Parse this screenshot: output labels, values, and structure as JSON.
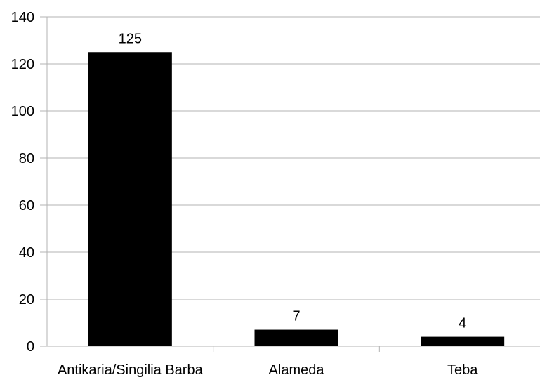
{
  "chart_data": {
    "type": "bar",
    "title": "",
    "xlabel": "",
    "ylabel": "",
    "categories": [
      "Antikaria/Singilia Barba",
      "Alameda",
      "Teba"
    ],
    "values": [
      125,
      7,
      4
    ],
    "data_labels": [
      "125",
      "7",
      "4"
    ],
    "ylim": [
      0,
      140
    ],
    "yticks": [
      0,
      20,
      40,
      60,
      80,
      100,
      120,
      140
    ],
    "grid": true,
    "legend": "none",
    "bar_color": "#000000",
    "grid_color": "#b3b3b3"
  }
}
